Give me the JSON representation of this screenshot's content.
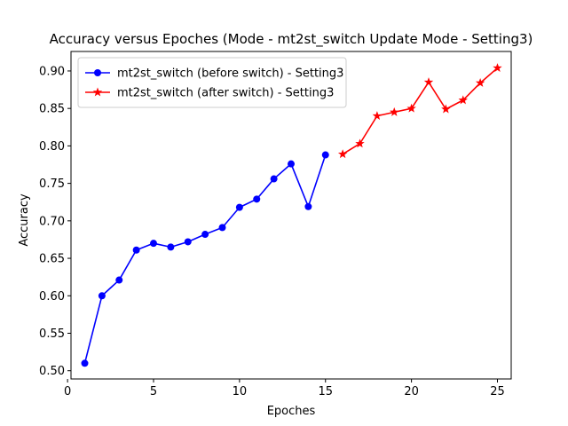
{
  "chart_data": {
    "type": "line",
    "title": "Accuracy versus Epoches (Mode - mt2st_switch Update Mode - Setting3)",
    "xlabel": "Epoches",
    "ylabel": "Accuracy",
    "xlim": [
      0.2,
      25.8
    ],
    "ylim": [
      0.489,
      0.926
    ],
    "xticks": [
      0,
      5,
      10,
      15,
      20,
      25
    ],
    "yticks": [
      0.5,
      0.55,
      0.6,
      0.65,
      0.7,
      0.75,
      0.8,
      0.85,
      0.9
    ],
    "xtick_labels": [
      "0",
      "5",
      "10",
      "15",
      "20",
      "25"
    ],
    "ytick_labels": [
      "0.50",
      "0.55",
      "0.60",
      "0.65",
      "0.70",
      "0.75",
      "0.80",
      "0.85",
      "0.90"
    ],
    "grid": false,
    "legend_position": "top-left",
    "series": [
      {
        "name": "mt2st_switch (before switch) - Setting3",
        "color": "#0000ff",
        "marker": "circle",
        "x": [
          1,
          2,
          3,
          4,
          5,
          6,
          7,
          8,
          9,
          10,
          11,
          12,
          13,
          14,
          15
        ],
        "y": [
          0.51,
          0.6,
          0.621,
          0.661,
          0.67,
          0.665,
          0.672,
          0.682,
          0.691,
          0.718,
          0.729,
          0.756,
          0.776,
          0.719,
          0.788
        ]
      },
      {
        "name": "mt2st_switch (after switch) - Setting3",
        "color": "#ff0000",
        "marker": "star",
        "x": [
          16,
          17,
          18,
          19,
          20,
          21,
          22,
          23,
          24,
          25
        ],
        "y": [
          0.789,
          0.803,
          0.84,
          0.845,
          0.85,
          0.885,
          0.849,
          0.861,
          0.884,
          0.904
        ]
      }
    ]
  }
}
